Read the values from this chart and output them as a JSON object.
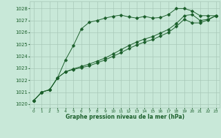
{
  "xlabel": "Graphe pression niveau de la mer (hPa)",
  "xlim": [
    -0.5,
    23.5
  ],
  "ylim": [
    1019.7,
    1028.6
  ],
  "yticks": [
    1020,
    1021,
    1022,
    1023,
    1024,
    1025,
    1026,
    1027,
    1028
  ],
  "xticks": [
    0,
    1,
    2,
    3,
    4,
    5,
    6,
    7,
    8,
    9,
    10,
    11,
    12,
    13,
    14,
    15,
    16,
    17,
    18,
    19,
    20,
    21,
    22,
    23
  ],
  "background_color": "#c8e8d8",
  "grid_color": "#a8c8b8",
  "line_color": "#1a5e2a",
  "line1": [
    1020.3,
    1021.0,
    1021.2,
    1022.2,
    1023.7,
    1024.9,
    1026.3,
    1026.85,
    1027.0,
    1027.2,
    1027.35,
    1027.45,
    1027.3,
    1027.2,
    1027.35,
    1027.2,
    1027.25,
    1027.5,
    1028.0,
    1028.0,
    1027.8,
    1027.4,
    1027.4,
    1027.4
  ],
  "line2": [
    1020.3,
    1021.0,
    1021.2,
    1022.2,
    1022.7,
    1022.95,
    1023.15,
    1023.35,
    1023.6,
    1023.85,
    1024.2,
    1024.55,
    1024.9,
    1025.2,
    1025.45,
    1025.65,
    1025.95,
    1026.25,
    1026.75,
    1027.4,
    1027.5,
    1027.0,
    1027.1,
    1027.4
  ],
  "line3": [
    1020.3,
    1021.0,
    1021.2,
    1022.2,
    1022.7,
    1022.9,
    1023.05,
    1023.2,
    1023.45,
    1023.7,
    1024.0,
    1024.3,
    1024.65,
    1024.95,
    1025.2,
    1025.4,
    1025.7,
    1026.0,
    1026.5,
    1027.1,
    1026.8,
    1026.8,
    1027.05,
    1027.4
  ],
  "marker_size": 2.5,
  "linewidth": 0.7
}
